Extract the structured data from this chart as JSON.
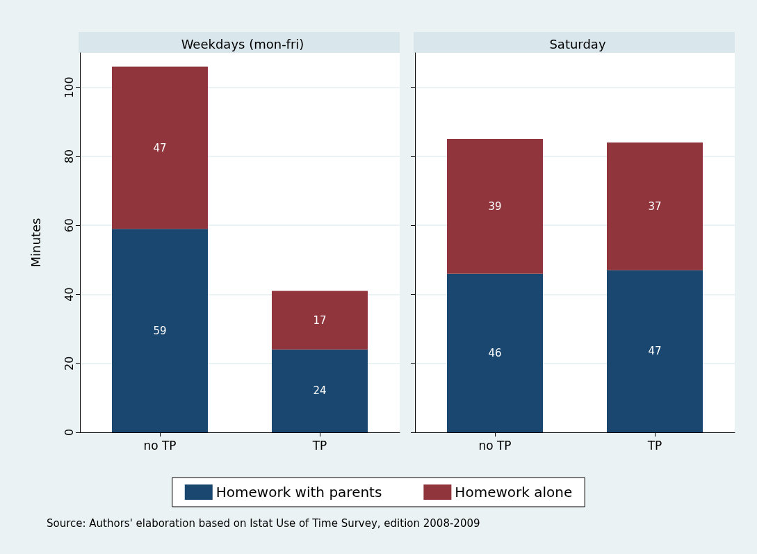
{
  "chart_data": [
    {
      "type": "bar",
      "title": "Weekdays (mon-fri)",
      "ylabel": "Minutes",
      "categories": [
        "no TP",
        "TP"
      ],
      "stacked": true,
      "data_labels": true,
      "series": [
        {
          "name": "Homework with parents",
          "color": "#1a476f",
          "values": [
            59,
            24
          ]
        },
        {
          "name": "Homework alone",
          "color": "#90353b",
          "values": [
            47,
            17
          ]
        }
      ],
      "ylim": [
        0,
        110
      ],
      "yticks": [
        0,
        20,
        40,
        60,
        80,
        100
      ],
      "grid": "y",
      "legend": "bottom",
      "annotations": [
        "Source: Authors' elaboration based on Istat Use of Time Survey, edition 2008-2009"
      ]
    },
    {
      "type": "bar",
      "title": "Saturday",
      "categories": [
        "no TP",
        "TP"
      ],
      "stacked": true,
      "data_labels": true,
      "series": [
        {
          "color": "#1a476f",
          "values": [
            46,
            47
          ]
        },
        {
          "color": "#90353b",
          "values": [
            39,
            37
          ]
        }
      ],
      "ylim": [
        0,
        110
      ],
      "yticks": [
        0,
        20,
        40,
        60,
        80,
        100
      ],
      "grid": "y",
      "tick_labels": "x"
    }
  ]
}
